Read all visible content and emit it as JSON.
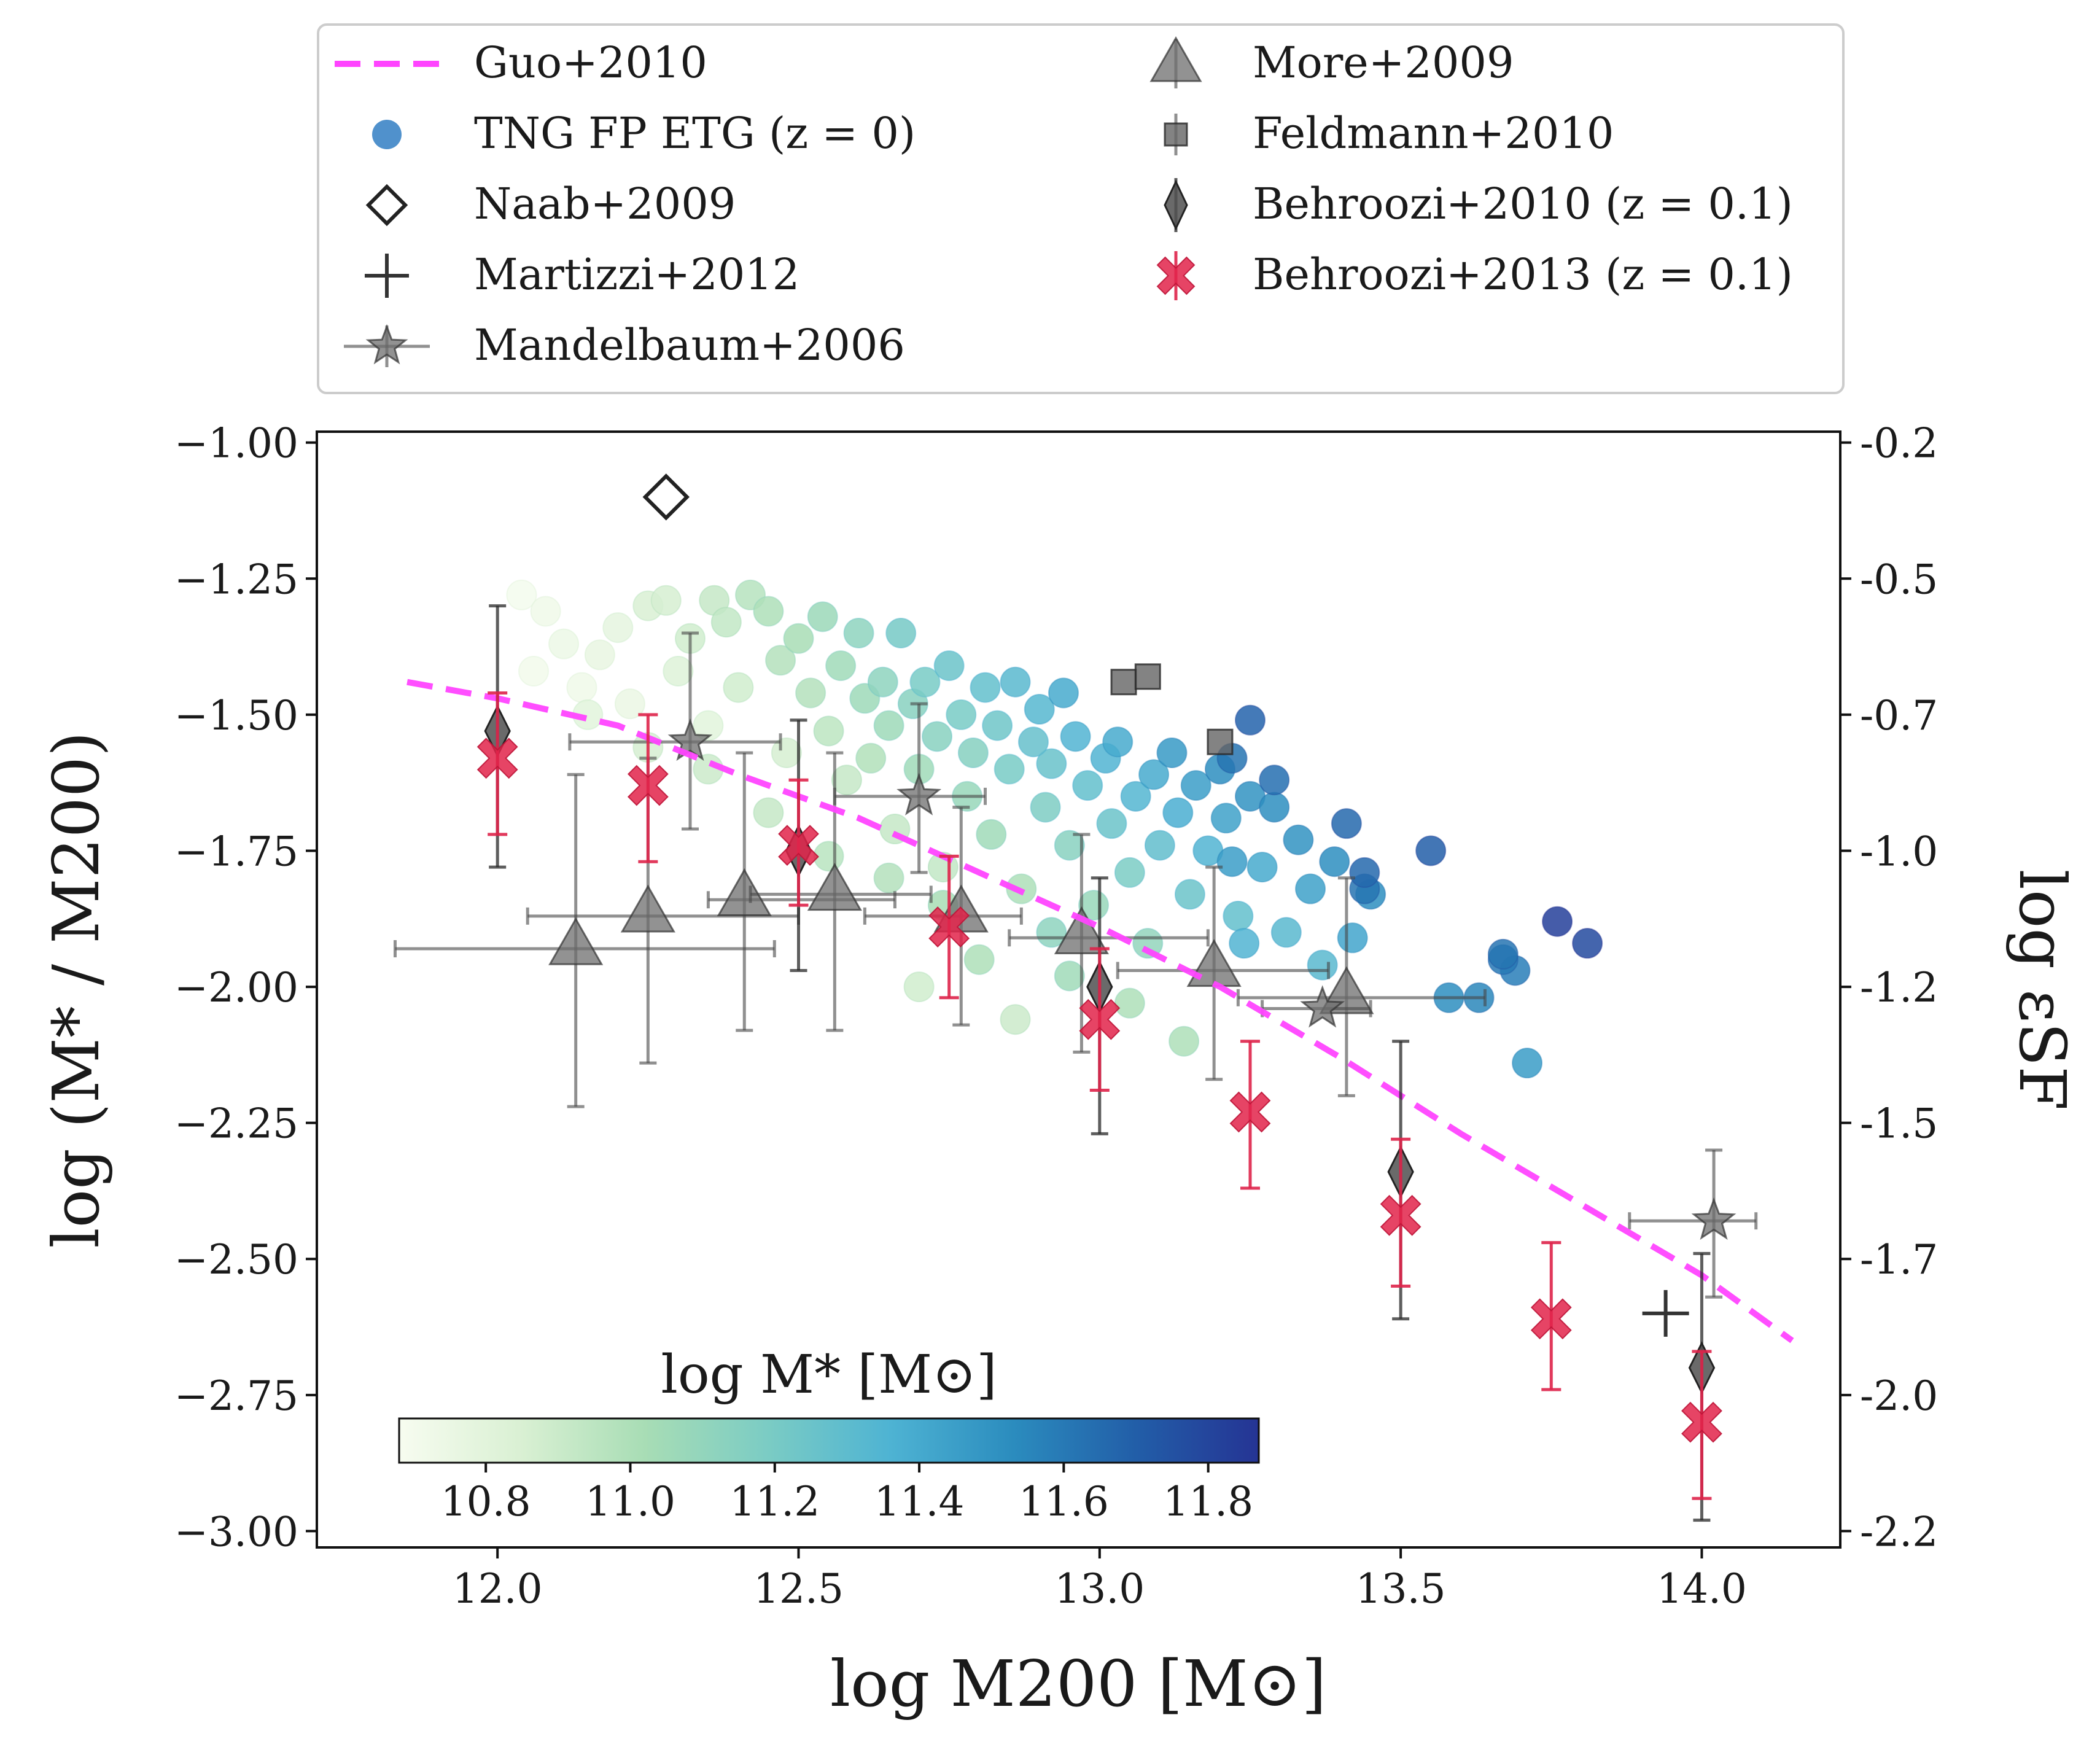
{
  "chart_data": {
    "type": "scatter",
    "title": "",
    "xlabel": "log M200 [M⊙]",
    "ylabel": "log (M* / M200)",
    "y2label": "log εSF",
    "xlim": [
      11.7,
      14.23
    ],
    "ylim": [
      -3.03,
      -0.98
    ],
    "x_ticks": [
      "12.0",
      "12.5",
      "13.0",
      "13.5",
      "14.0"
    ],
    "y_ticks": [
      "−1.00",
      "−1.25",
      "−1.50",
      "−1.75",
      "−2.00",
      "−2.25",
      "−2.50",
      "−2.75",
      "−3.00"
    ],
    "y2_ticks": [
      "-0.2",
      "-0.5",
      "-0.7",
      "-1.0",
      "-1.2",
      "-1.5",
      "-1.7",
      "-2.0",
      "-2.2"
    ],
    "colorbar": {
      "label": "log M* [M⊙]",
      "range": [
        10.68,
        11.87
      ],
      "ticks": [
        "10.8",
        "11.0",
        "11.2",
        "11.4",
        "11.6",
        "11.8"
      ],
      "colormap": [
        "#f7fcf0",
        "#d9f0d3",
        "#a8ddb5",
        "#7bccc4",
        "#4eb3d3",
        "#2b8cbe",
        "#225ea8",
        "#253494"
      ]
    },
    "legend": {
      "placement": "top, outside",
      "entries": [
        {
          "label": "Guo+2010",
          "marker": "dashed-line",
          "color": "#ff44ff"
        },
        {
          "label": "TNG FP ETG (z = 0)",
          "marker": "circle",
          "color": "#3d85c6"
        },
        {
          "label": "Naab+2009",
          "marker": "open-diamond",
          "color": "#222222"
        },
        {
          "label": "Martizzi+2012",
          "marker": "plus",
          "color": "#333333"
        },
        {
          "label": "Mandelbaum+2006",
          "marker": "star",
          "color": "#666666"
        },
        {
          "label": "More+2009",
          "marker": "triangle",
          "color": "#777777"
        },
        {
          "label": "Feldmann+2010",
          "marker": "square",
          "color": "#666666"
        },
        {
          "label": "Behroozi+2010 (z = 0.1)",
          "marker": "thin-diamond",
          "color": "#555555"
        },
        {
          "label": "Behroozi+2013 (z = 0.1)",
          "marker": "x-filled",
          "color": "#e0234a"
        }
      ]
    },
    "series": [
      {
        "name": "Guo+2010",
        "kind": "line",
        "color": "#ff44ff",
        "x": [
          11.85,
          12.0,
          12.2,
          12.4,
          12.6,
          12.8,
          13.0,
          13.2,
          13.4,
          13.6,
          13.8,
          14.0,
          14.15
        ],
        "y": [
          -1.44,
          -1.47,
          -1.52,
          -1.61,
          -1.69,
          -1.79,
          -1.89,
          -2.0,
          -2.13,
          -2.27,
          -2.4,
          -2.53,
          -2.65
        ]
      },
      {
        "name": "TNG FP ETG (z=0)",
        "kind": "scatter_colored",
        "note": "points are [log M200, log(M*/M200), log M*]",
        "points": [
          [
            12.04,
            -1.28,
            10.7
          ],
          [
            12.08,
            -1.31,
            10.72
          ],
          [
            12.11,
            -1.37,
            10.74
          ],
          [
            12.14,
            -1.45,
            10.72
          ],
          [
            12.06,
            -1.42,
            10.71
          ],
          [
            12.17,
            -1.39,
            10.76
          ],
          [
            12.2,
            -1.34,
            10.78
          ],
          [
            12.22,
            -1.48,
            10.75
          ],
          [
            12.25,
            -1.3,
            10.85
          ],
          [
            12.28,
            -1.29,
            10.86
          ],
          [
            12.3,
            -1.42,
            10.82
          ],
          [
            12.32,
            -1.36,
            10.88
          ],
          [
            12.35,
            -1.52,
            10.8
          ],
          [
            12.36,
            -1.29,
            10.92
          ],
          [
            12.38,
            -1.33,
            10.93
          ],
          [
            12.4,
            -1.45,
            10.88
          ],
          [
            12.42,
            -1.28,
            10.97
          ],
          [
            12.45,
            -1.31,
            11.0
          ],
          [
            12.47,
            -1.4,
            10.98
          ],
          [
            12.48,
            -1.57,
            10.86
          ],
          [
            12.5,
            -1.36,
            11.02
          ],
          [
            12.52,
            -1.46,
            10.98
          ],
          [
            12.54,
            -1.32,
            11.07
          ],
          [
            12.55,
            -1.53,
            10.95
          ],
          [
            12.57,
            -1.41,
            11.05
          ],
          [
            12.58,
            -1.62,
            10.92
          ],
          [
            12.6,
            -1.35,
            11.12
          ],
          [
            12.61,
            -1.47,
            11.06
          ],
          [
            12.62,
            -1.58,
            10.99
          ],
          [
            12.64,
            -1.44,
            11.12
          ],
          [
            12.65,
            -1.52,
            11.06
          ],
          [
            12.66,
            -1.71,
            10.92
          ],
          [
            12.67,
            -1.35,
            11.21
          ],
          [
            12.69,
            -1.48,
            11.14
          ],
          [
            12.7,
            -1.6,
            11.05
          ],
          [
            12.71,
            -1.44,
            11.2
          ],
          [
            12.73,
            -1.54,
            11.14
          ],
          [
            12.74,
            -1.78,
            10.93
          ],
          [
            12.75,
            -1.41,
            11.25
          ],
          [
            12.77,
            -1.5,
            11.2
          ],
          [
            12.78,
            -1.65,
            11.08
          ],
          [
            12.79,
            -1.57,
            11.15
          ],
          [
            12.81,
            -1.45,
            11.28
          ],
          [
            12.82,
            -1.72,
            11.05
          ],
          [
            12.83,
            -1.52,
            11.24
          ],
          [
            12.85,
            -1.6,
            11.2
          ],
          [
            12.86,
            -1.44,
            11.32
          ],
          [
            12.87,
            -1.82,
            11.0
          ],
          [
            12.89,
            -1.55,
            11.27
          ],
          [
            12.9,
            -1.49,
            11.33
          ],
          [
            12.91,
            -1.67,
            11.18
          ],
          [
            12.92,
            -1.59,
            11.26
          ],
          [
            12.94,
            -1.46,
            11.4
          ],
          [
            12.95,
            -1.74,
            11.14
          ],
          [
            12.96,
            -1.54,
            11.35
          ],
          [
            12.98,
            -1.63,
            11.28
          ],
          [
            12.99,
            -1.85,
            11.08
          ],
          [
            13.01,
            -1.58,
            11.35
          ],
          [
            13.02,
            -1.7,
            11.25
          ],
          [
            13.03,
            -1.55,
            11.4
          ],
          [
            13.05,
            -1.79,
            11.19
          ],
          [
            13.06,
            -1.65,
            11.34
          ],
          [
            13.08,
            -1.92,
            11.1
          ],
          [
            13.09,
            -1.61,
            11.4
          ],
          [
            13.1,
            -1.74,
            11.29
          ],
          [
            13.12,
            -1.57,
            11.47
          ],
          [
            13.13,
            -1.68,
            11.38
          ],
          [
            13.15,
            -1.83,
            11.25
          ],
          [
            13.16,
            -1.63,
            11.45
          ],
          [
            13.18,
            -1.75,
            11.35
          ],
          [
            13.2,
            -1.6,
            11.52
          ],
          [
            13.21,
            -1.69,
            11.44
          ],
          [
            13.23,
            -1.87,
            11.28
          ],
          [
            13.25,
            -1.65,
            11.5
          ],
          [
            13.27,
            -1.78,
            11.4
          ],
          [
            13.29,
            -1.67,
            11.52
          ],
          [
            13.31,
            -1.9,
            11.32
          ],
          [
            13.33,
            -1.73,
            11.5
          ],
          [
            13.35,
            -1.82,
            11.44
          ],
          [
            13.37,
            -1.96,
            11.32
          ],
          [
            13.39,
            -1.77,
            11.52
          ],
          [
            13.42,
            -1.91,
            11.42
          ],
          [
            13.45,
            -1.83,
            11.52
          ],
          [
            13.25,
            -1.51,
            11.68
          ],
          [
            13.22,
            -1.58,
            11.62
          ],
          [
            13.29,
            -1.62,
            11.64
          ],
          [
            13.41,
            -1.7,
            11.66
          ],
          [
            13.44,
            -1.79,
            11.66
          ],
          [
            13.44,
            -1.82,
            11.62
          ],
          [
            13.55,
            -1.75,
            11.7
          ],
          [
            13.63,
            -2.02,
            11.55
          ],
          [
            13.67,
            -1.94,
            11.62
          ],
          [
            13.69,
            -1.97,
            11.58
          ],
          [
            13.71,
            -2.14,
            11.46
          ],
          [
            13.76,
            -1.88,
            11.82
          ],
          [
            13.81,
            -1.92,
            11.78
          ],
          [
            13.67,
            -1.95,
            11.6
          ],
          [
            13.58,
            -2.02,
            11.52
          ],
          [
            13.22,
            -1.77,
            11.45
          ],
          [
            13.24,
            -1.92,
            11.35
          ],
          [
            12.92,
            -1.9,
            11.12
          ],
          [
            12.8,
            -1.95,
            11.0
          ],
          [
            12.7,
            -2.0,
            10.88
          ],
          [
            12.86,
            -2.06,
            10.9
          ],
          [
            13.14,
            -2.1,
            11.0
          ],
          [
            12.95,
            -1.98,
            11.05
          ],
          [
            13.05,
            -2.03,
            11.0
          ],
          [
            12.74,
            -1.85,
            11.02
          ],
          [
            12.65,
            -1.8,
            10.98
          ],
          [
            12.55,
            -1.76,
            10.96
          ],
          [
            12.45,
            -1.68,
            10.92
          ],
          [
            12.35,
            -1.6,
            10.9
          ],
          [
            12.25,
            -1.56,
            10.86
          ],
          [
            12.15,
            -1.5,
            10.8
          ]
        ]
      },
      {
        "name": "Naab+2009",
        "kind": "marker",
        "points": [
          [
            12.28,
            -1.1
          ]
        ]
      },
      {
        "name": "Martizzi+2012",
        "kind": "marker",
        "points": [
          [
            13.94,
            -2.6
          ]
        ]
      },
      {
        "name": "Mandelbaum+2006",
        "kind": "errorbar",
        "points": [
          {
            "x": 12.32,
            "y": -1.55,
            "xerr": [
              0.2,
              0.15
            ],
            "yerr": [
              0.16,
              0.2
            ]
          },
          {
            "x": 12.7,
            "y": -1.65,
            "xerr": [
              0.14,
              0.11
            ],
            "yerr": [
              0.14,
              0.17
            ]
          },
          {
            "x": 13.37,
            "y": -2.04,
            "xerr": [
              0.1,
              0.08
            ],
            "yerr": [
              0.0,
              0.0
            ]
          },
          {
            "x": 14.02,
            "y": -2.43,
            "xerr": [
              0.14,
              0.07
            ],
            "yerr": [
              0.14,
              0.13
            ]
          }
        ]
      },
      {
        "name": "More+2009",
        "kind": "errorbar",
        "points": [
          {
            "x": 12.13,
            "y": -1.93,
            "xerr": [
              0.3,
              0.33
            ],
            "yerr": [
              0.29,
              0.32
            ]
          },
          {
            "x": 12.25,
            "y": -1.87,
            "xerr": [
              0.2,
              0.25
            ],
            "yerr": [
              0.27,
              0.29
            ]
          },
          {
            "x": 12.41,
            "y": -1.84,
            "xerr": [
              0.06,
              0.25
            ],
            "yerr": [
              0.24,
              0.27
            ]
          },
          {
            "x": 12.56,
            "y": -1.83,
            "xerr": [
              0.14,
              0.16
            ],
            "yerr": [
              0.25,
              0.26
            ]
          },
          {
            "x": 12.77,
            "y": -1.87,
            "xerr": [
              0.16,
              0.1
            ],
            "yerr": [
              0.2,
              0.2
            ]
          },
          {
            "x": 12.97,
            "y": -1.91,
            "xerr": [
              0.12,
              0.21
            ],
            "yerr": [
              0.21,
              0.19
            ]
          },
          {
            "x": 13.19,
            "y": -1.97,
            "xerr": [
              0.16,
              0.19
            ],
            "yerr": [
              0.2,
              0.19
            ]
          },
          {
            "x": 13.41,
            "y": -2.02,
            "xerr": [
              0.18,
              0.23
            ],
            "yerr": [
              0.18,
              0.22
            ]
          }
        ]
      },
      {
        "name": "Feldmann+2010",
        "kind": "marker",
        "points": [
          [
            13.04,
            -1.44
          ],
          [
            13.08,
            -1.43
          ],
          [
            13.2,
            -1.55
          ]
        ]
      },
      {
        "name": "Behroozi+2010 (z=0.1)",
        "kind": "errorbar",
        "points": [
          {
            "x": 12.0,
            "y": -1.53,
            "yerr": [
              0.25,
              0.23
            ]
          },
          {
            "x": 12.5,
            "y": -1.75,
            "yerr": [
              0.22,
              0.24
            ]
          },
          {
            "x": 13.0,
            "y": -2.0,
            "yerr": [
              0.27,
              0.2
            ]
          },
          {
            "x": 13.5,
            "y": -2.34,
            "yerr": [
              0.27,
              0.24
            ]
          },
          {
            "x": 14.0,
            "y": -2.7,
            "yerr": [
              0.28,
              0.21
            ]
          }
        ]
      },
      {
        "name": "Behroozi+2013 (z=0.1)",
        "kind": "errorbar",
        "points": [
          {
            "x": 12.0,
            "y": -1.58,
            "yerr": [
              0.14,
              0.12
            ]
          },
          {
            "x": 12.25,
            "y": -1.63,
            "yerr": [
              0.14,
              0.13
            ]
          },
          {
            "x": 12.5,
            "y": -1.74,
            "yerr": [
              0.11,
              0.12
            ]
          },
          {
            "x": 12.75,
            "y": -1.89,
            "yerr": [
              0.13,
              0.13
            ]
          },
          {
            "x": 13.0,
            "y": -2.06,
            "yerr": [
              0.13,
              0.13
            ]
          },
          {
            "x": 13.25,
            "y": -2.23,
            "yerr": [
              0.14,
              0.13
            ]
          },
          {
            "x": 13.5,
            "y": -2.42,
            "yerr": [
              0.13,
              0.14
            ]
          },
          {
            "x": 13.75,
            "y": -2.61,
            "yerr": [
              0.13,
              0.14
            ]
          },
          {
            "x": 14.0,
            "y": -2.8,
            "yerr": [
              0.14,
              0.13
            ]
          }
        ]
      }
    ]
  }
}
